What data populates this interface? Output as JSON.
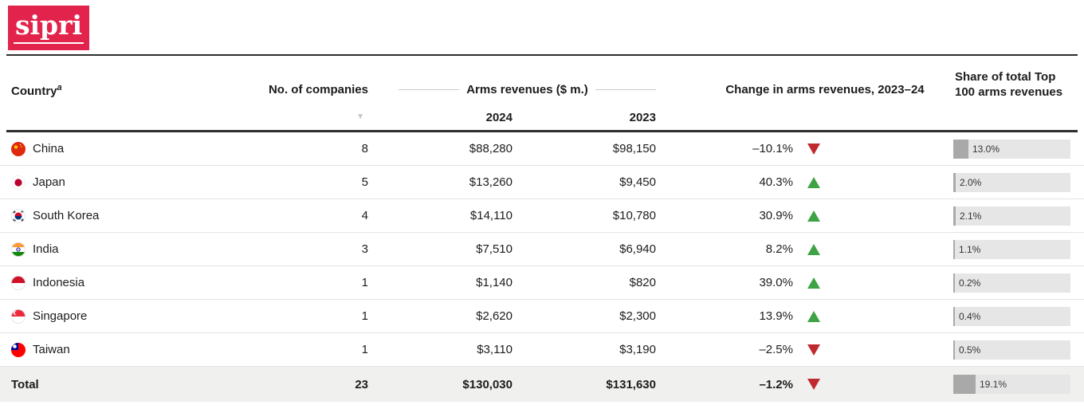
{
  "brand": {
    "logo_text": "sipri"
  },
  "table": {
    "headers": {
      "country": "Country",
      "country_superscript": "a",
      "companies": "No. of companies",
      "arms_revenues": "Arms revenues ($ m.)",
      "year_2024": "2024",
      "year_2023": "2023",
      "change": "Change in arms revenues, 2023–24",
      "share_line1": "Share of total Top",
      "share_line2": "100 arms revenues",
      "sort_icon": "▼"
    },
    "rows": [
      {
        "country": "China",
        "flag": "china",
        "companies": "8",
        "rev_2024": "$88,280",
        "rev_2023": "$98,150",
        "change": "–10.1%",
        "direction": "down",
        "share_label": "13.0%",
        "share_value": 13.0
      },
      {
        "country": "Japan",
        "flag": "japan",
        "companies": "5",
        "rev_2024": "$13,260",
        "rev_2023": "$9,450",
        "change": "40.3%",
        "direction": "up",
        "share_label": "2.0%",
        "share_value": 2.0
      },
      {
        "country": "South Korea",
        "flag": "south-korea",
        "companies": "4",
        "rev_2024": "$14,110",
        "rev_2023": "$10,780",
        "change": "30.9%",
        "direction": "up",
        "share_label": "2.1%",
        "share_value": 2.1
      },
      {
        "country": "India",
        "flag": "india",
        "companies": "3",
        "rev_2024": "$7,510",
        "rev_2023": "$6,940",
        "change": "8.2%",
        "direction": "up",
        "share_label": "1.1%",
        "share_value": 1.1
      },
      {
        "country": "Indonesia",
        "flag": "indonesia",
        "companies": "1",
        "rev_2024": "$1,140",
        "rev_2023": "$820",
        "change": "39.0%",
        "direction": "up",
        "share_label": "0.2%",
        "share_value": 0.2
      },
      {
        "country": "Singapore",
        "flag": "singapore",
        "companies": "1",
        "rev_2024": "$2,620",
        "rev_2023": "$2,300",
        "change": "13.9%",
        "direction": "up",
        "share_label": "0.4%",
        "share_value": 0.4
      },
      {
        "country": "Taiwan",
        "flag": "taiwan",
        "companies": "1",
        "rev_2024": "$3,110",
        "rev_2023": "$3,190",
        "change": "–2.5%",
        "direction": "down",
        "share_label": "0.5%",
        "share_value": 0.5
      }
    ],
    "total": {
      "country": "Total",
      "flag": null,
      "companies": "23",
      "rev_2024": "$130,030",
      "rev_2023": "$131,630",
      "change": "–1.2%",
      "direction": "down",
      "share_label": "19.1%",
      "share_value": 19.1
    }
  },
  "colors": {
    "brand_red": "#e2234b",
    "up_green": "#3da344",
    "down_red": "#bf2a30",
    "bar_fill": "#a9a9a9",
    "bar_bg": "#e6e6e6",
    "total_row_bg": "#f0f0ee"
  },
  "chart_data": {
    "type": "table",
    "title": "Arms revenues of SIPRI Top 100 companies by country",
    "columns": [
      "Country",
      "No. of companies",
      "Arms revenues ($ m.) 2024",
      "Arms revenues ($ m.) 2023",
      "Change in arms revenues, 2023–24",
      "Share of total Top 100 arms revenues"
    ],
    "rows": [
      [
        "China",
        8,
        88280,
        98150,
        -10.1,
        13.0
      ],
      [
        "Japan",
        5,
        13260,
        9450,
        40.3,
        2.0
      ],
      [
        "South Korea",
        4,
        14110,
        10780,
        30.9,
        2.1
      ],
      [
        "India",
        3,
        7510,
        6940,
        8.2,
        1.1
      ],
      [
        "Indonesia",
        1,
        1140,
        820,
        39.0,
        0.2
      ],
      [
        "Singapore",
        1,
        2620,
        2300,
        13.9,
        0.4
      ],
      [
        "Taiwan",
        1,
        3110,
        3190,
        -2.5,
        0.5
      ]
    ],
    "total_row": [
      "Total",
      23,
      130030,
      131630,
      -1.2,
      19.1
    ]
  }
}
